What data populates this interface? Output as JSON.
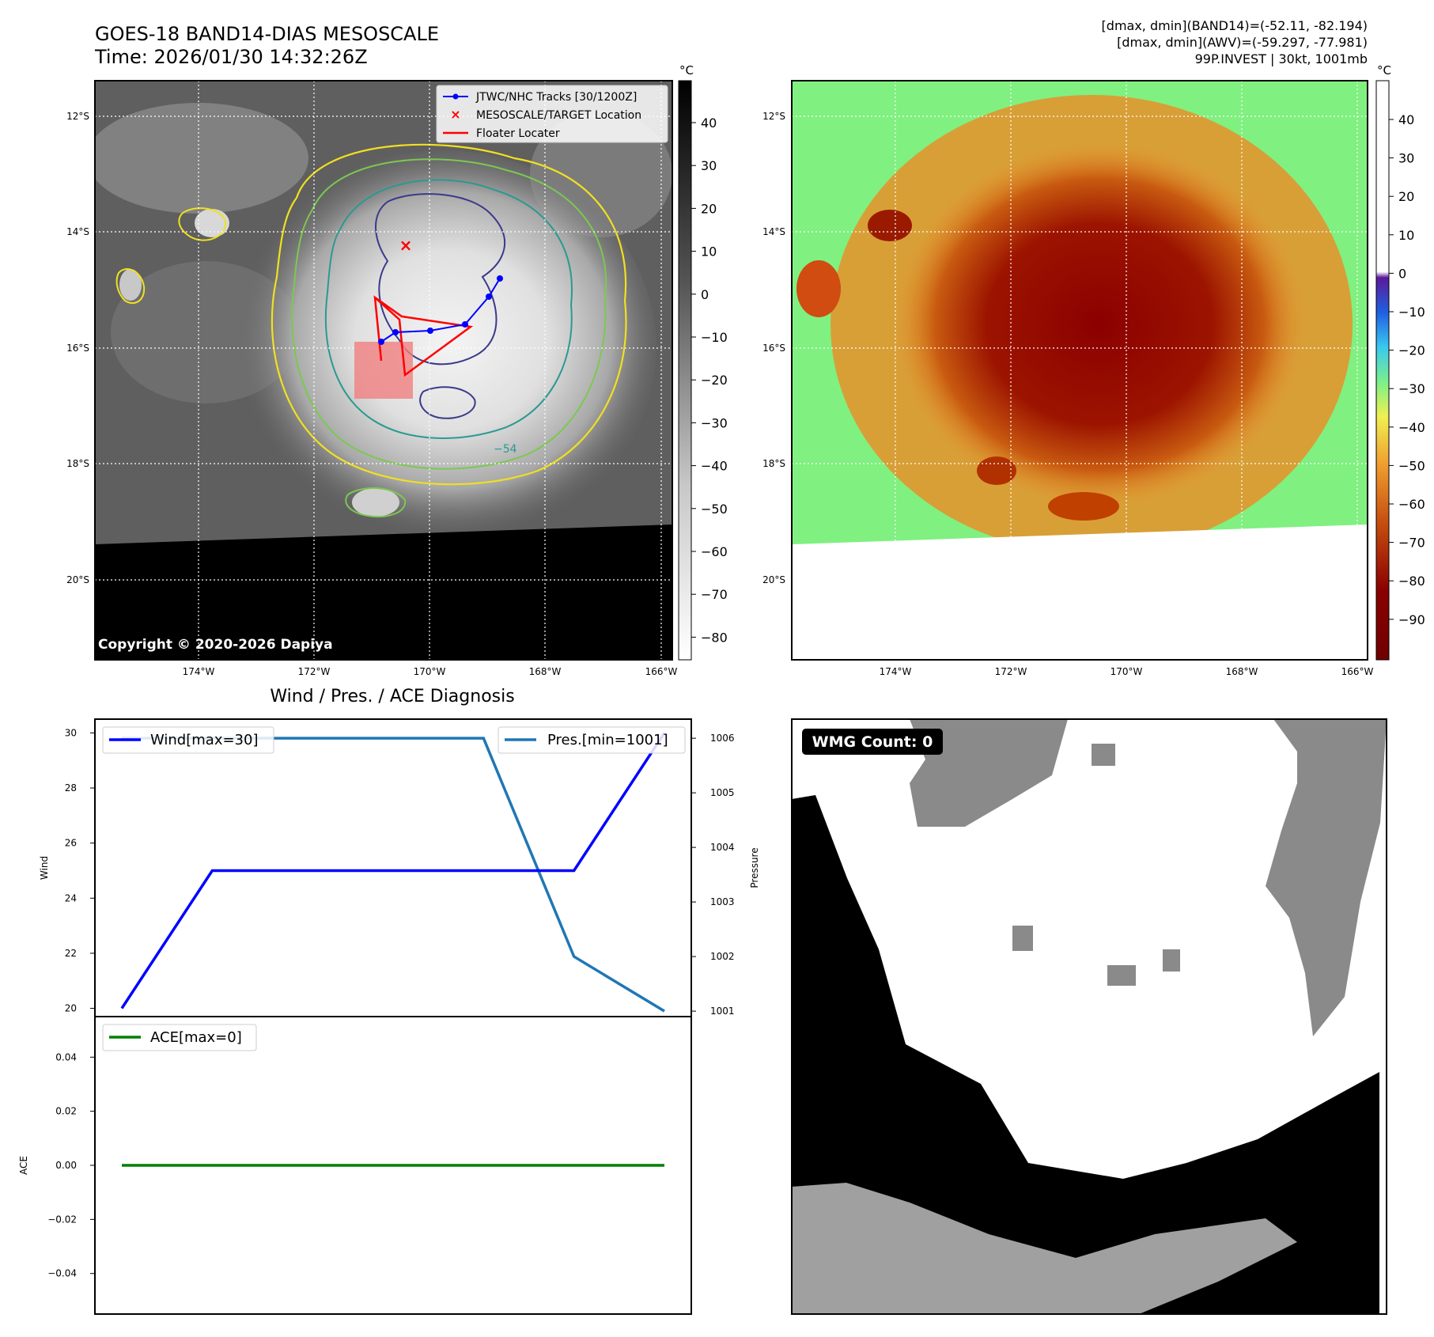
{
  "header": {
    "title_line1": "GOES-18 BAND14-DIAS MESOSCALE",
    "title_line2": "Time: 2026/01/30 14:32:26Z",
    "info_line1": "[dmax, dmin](BAND14)=(-52.11, -82.194)",
    "info_line2": "[dmax, dmin](AWV)=(-59.297, -77.981)",
    "info_line3": "99P.INVEST | 30kt, 1001mb"
  },
  "map_axes": {
    "lat_labels": [
      "12°S",
      "14°S",
      "16°S",
      "18°S",
      "20°S"
    ],
    "lon_labels": [
      "174°W",
      "172°W",
      "170°W",
      "168°W",
      "166°W"
    ]
  },
  "ir_panel": {
    "legend": [
      "JTWC/NHC Tracks [30/1200Z]",
      "MESOSCALE/TARGET Location",
      "Floater Locater"
    ],
    "copyright": "Copyright © 2020-2026 Dapiya",
    "contour_label": "−54",
    "colorbar_unit": "°C",
    "colorbar_ticks": [
      "40",
      "30",
      "20",
      "10",
      "0",
      "−10",
      "−20",
      "−30",
      "−40",
      "−50",
      "−60",
      "−70",
      "−80"
    ],
    "track_color": "#0000ff",
    "target_color": "#ff0000"
  },
  "awv_panel": {
    "colorbar_unit": "°C",
    "colorbar_ticks": [
      "40",
      "30",
      "20",
      "10",
      "0",
      "−10",
      "−20",
      "−30",
      "−40",
      "−50",
      "−60",
      "−70",
      "−80",
      "−90"
    ]
  },
  "diagnosis_title": "Wind / Pres. / ACE Diagnosis",
  "wmg_label": "WMG Count: 0",
  "chart_data": [
    {
      "type": "line",
      "title": "Wind / Pres. / ACE Diagnosis",
      "ylabel": "Wind",
      "y2label": "Pressure",
      "ylim": [
        19.7,
        30.5
      ],
      "y2lim": [
        1000.9,
        1006.35
      ],
      "yticks": [
        20,
        22,
        24,
        26,
        28,
        30
      ],
      "y2ticks": [
        1001,
        1002,
        1003,
        1004,
        1005,
        1006
      ],
      "x": [
        0,
        1,
        2,
        3,
        4,
        5,
        6
      ],
      "series": [
        {
          "name": "Wind[max=30]",
          "axis": "left",
          "color": "#0000ff",
          "values": [
            20,
            25,
            25,
            25,
            25,
            25,
            30
          ]
        },
        {
          "name": "Pres.[min=1001]",
          "axis": "right",
          "color": "#1f77b4",
          "values": [
            1006,
            1006,
            1006,
            1006,
            1006,
            1002,
            1001
          ]
        }
      ]
    },
    {
      "type": "line",
      "ylabel": "ACE",
      "ylim": [
        -0.055,
        0.055
      ],
      "yticks": [
        0.04,
        0.02,
        0.0,
        -0.02,
        -0.04
      ],
      "ytick_labels": [
        "0.04",
        "0.02",
        "0.00",
        "−0.02",
        "−0.04"
      ],
      "x": [
        0,
        1,
        2,
        3,
        4,
        5,
        6
      ],
      "series": [
        {
          "name": "ACE[max=0]",
          "color": "#008000",
          "values": [
            0,
            0,
            0,
            0,
            0,
            0,
            0
          ]
        }
      ]
    }
  ]
}
